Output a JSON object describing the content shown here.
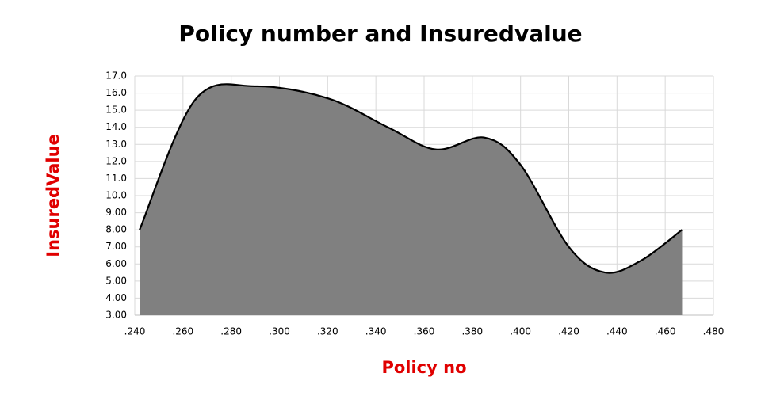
{
  "chart_data": {
    "type": "area",
    "title": "Policy number and Insuredvalue",
    "x_label": "Policy no",
    "y_label": "InsuredValue",
    "x": [
      0.242,
      0.265,
      0.29,
      0.32,
      0.345,
      0.365,
      0.385,
      0.4,
      0.42,
      0.435,
      0.45,
      0.467
    ],
    "values": [
      8.0,
      15.6,
      16.4,
      15.7,
      14.0,
      12.7,
      13.4,
      11.8,
      7.0,
      5.5,
      6.2,
      8.0
    ],
    "color": "#808080",
    "line_color": "#000000",
    "label_color": "#e00000",
    "xlim": [
      0.24,
      0.48
    ],
    "xticks": [
      {
        "value": 0.24,
        "label": ".240"
      },
      {
        "value": 0.26,
        "label": ".260"
      },
      {
        "value": 0.28,
        "label": ".280"
      },
      {
        "value": 0.3,
        "label": ".300"
      },
      {
        "value": 0.32,
        "label": ".320"
      },
      {
        "value": 0.34,
        "label": ".340"
      },
      {
        "value": 0.36,
        "label": ".360"
      },
      {
        "value": 0.38,
        "label": ".380"
      },
      {
        "value": 0.4,
        "label": ".400"
      },
      {
        "value": 0.42,
        "label": ".420"
      },
      {
        "value": 0.44,
        "label": ".440"
      },
      {
        "value": 0.46,
        "label": ".460"
      },
      {
        "value": 0.48,
        "label": ".480"
      }
    ],
    "ylim": [
      3,
      17
    ],
    "yticks": [
      {
        "value": 3,
        "label": "3.00"
      },
      {
        "value": 4,
        "label": "4.00"
      },
      {
        "value": 5,
        "label": "5.00"
      },
      {
        "value": 6,
        "label": "6.00"
      },
      {
        "value": 7,
        "label": "7.00"
      },
      {
        "value": 8,
        "label": "8.00"
      },
      {
        "value": 9,
        "label": "9.00"
      },
      {
        "value": 10,
        "label": "10.0"
      },
      {
        "value": 11,
        "label": "11.0"
      },
      {
        "value": 12,
        "label": "12.0"
      },
      {
        "value": 13,
        "label": "13.0"
      },
      {
        "value": 14,
        "label": "14.0"
      },
      {
        "value": 15,
        "label": "15.0"
      },
      {
        "value": 16,
        "label": "16.0"
      },
      {
        "value": 17,
        "label": "17.0"
      }
    ],
    "grid": true
  }
}
